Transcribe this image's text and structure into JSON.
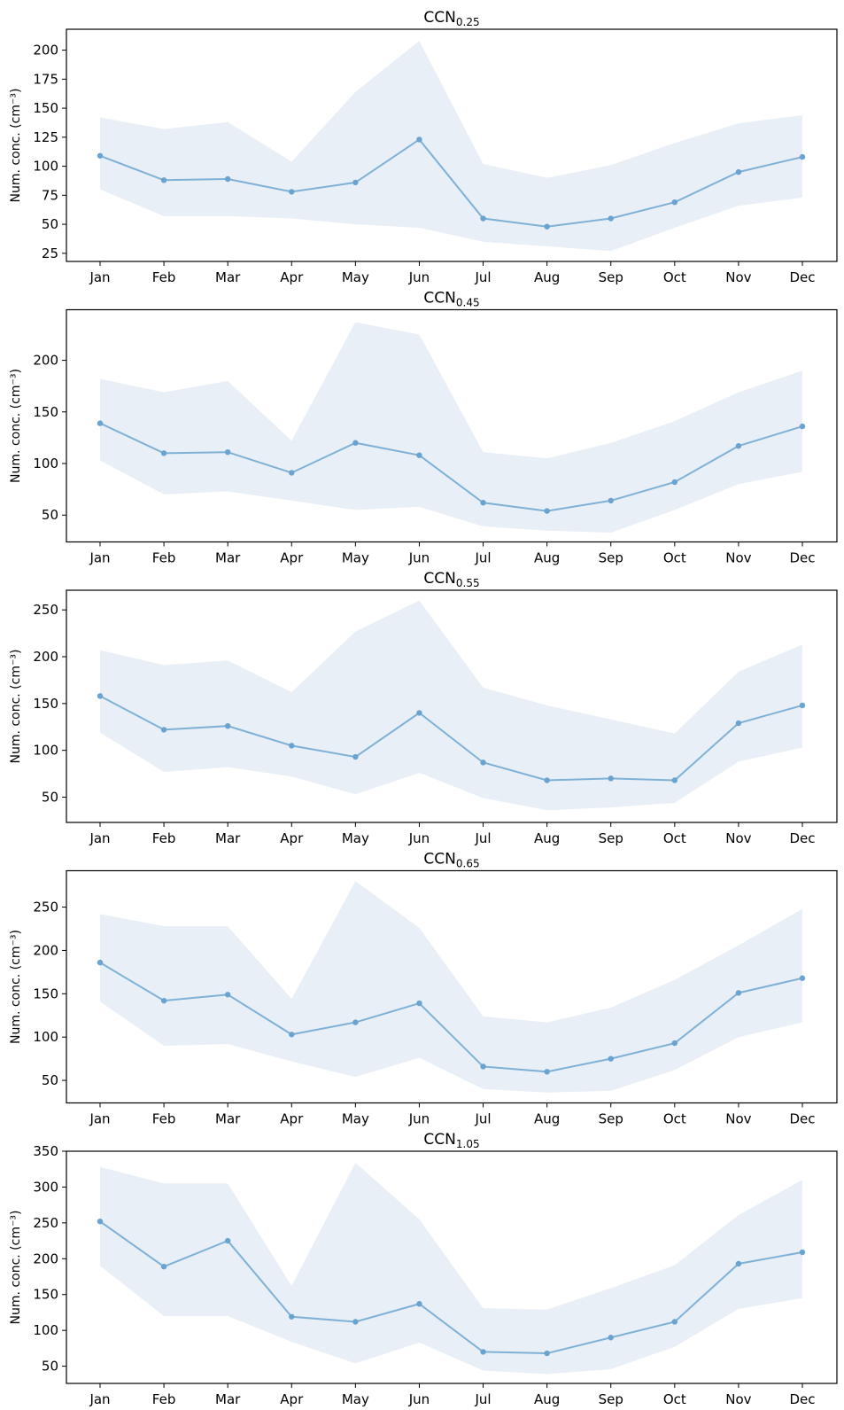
{
  "figure": {
    "colors": {
      "line": "#7fb1d6",
      "band": "#e8eff6",
      "marker": "#6aa3cf"
    }
  },
  "chart_data": [
    {
      "type": "area",
      "title_main": "CCN",
      "title_sub": "0.25",
      "ylabel": "Num. conc. (cm⁻³)",
      "categories": [
        "Jan",
        "Feb",
        "Mar",
        "Apr",
        "May",
        "Jun",
        "Jul",
        "Aug",
        "Sep",
        "Oct",
        "Nov",
        "Dec"
      ],
      "yticks": [
        25,
        50,
        75,
        100,
        125,
        150,
        175,
        200
      ],
      "ylim": [
        18,
        218
      ],
      "series": [
        {
          "role": "median",
          "values": [
            109,
            88,
            89,
            78,
            86,
            123,
            55,
            48,
            55,
            69,
            95,
            108
          ]
        },
        {
          "role": "lower",
          "values": [
            80,
            57,
            57,
            55,
            50,
            47,
            35,
            31,
            27,
            47,
            66,
            73
          ]
        },
        {
          "role": "upper",
          "values": [
            142,
            132,
            138,
            104,
            164,
            208,
            102,
            90,
            101,
            120,
            137,
            144
          ]
        }
      ]
    },
    {
      "type": "area",
      "title_main": "CCN",
      "title_sub": "0.45",
      "ylabel": "Num. conc. (cm⁻³)",
      "categories": [
        "Jan",
        "Feb",
        "Mar",
        "Apr",
        "May",
        "Jun",
        "Jul",
        "Aug",
        "Sep",
        "Oct",
        "Nov",
        "Dec"
      ],
      "yticks": [
        50,
        100,
        150,
        200
      ],
      "ylim": [
        24,
        249
      ],
      "series": [
        {
          "role": "median",
          "values": [
            139,
            110,
            111,
            91,
            120,
            108,
            62,
            54,
            64,
            82,
            117,
            136
          ]
        },
        {
          "role": "lower",
          "values": [
            103,
            70,
            73,
            64,
            55,
            58,
            39,
            35,
            33,
            55,
            80,
            92
          ]
        },
        {
          "role": "upper",
          "values": [
            182,
            169,
            180,
            122,
            237,
            225,
            111,
            105,
            120,
            141,
            169,
            190
          ]
        }
      ]
    },
    {
      "type": "area",
      "title_main": "CCN",
      "title_sub": "0.55",
      "ylabel": "Num. conc. (cm⁻³)",
      "categories": [
        "Jan",
        "Feb",
        "Mar",
        "Apr",
        "May",
        "Jun",
        "Jul",
        "Aug",
        "Sep",
        "Oct",
        "Nov",
        "Dec"
      ],
      "yticks": [
        50,
        100,
        150,
        200,
        250
      ],
      "ylim": [
        23,
        271
      ],
      "series": [
        {
          "role": "median",
          "values": [
            158,
            122,
            126,
            105,
            93,
            140,
            87,
            68,
            70,
            68,
            129,
            148
          ]
        },
        {
          "role": "lower",
          "values": [
            119,
            77,
            82,
            72,
            53,
            76,
            49,
            36,
            39,
            44,
            88,
            103
          ]
        },
        {
          "role": "upper",
          "values": [
            207,
            191,
            196,
            162,
            227,
            260,
            167,
            148,
            133,
            118,
            184,
            213
          ]
        }
      ]
    },
    {
      "type": "area",
      "title_main": "CCN",
      "title_sub": "0.65",
      "ylabel": "Num. conc. (cm⁻³)",
      "categories": [
        "Jan",
        "Feb",
        "Mar",
        "Apr",
        "May",
        "Jun",
        "Jul",
        "Aug",
        "Sep",
        "Oct",
        "Nov",
        "Dec"
      ],
      "yticks": [
        50,
        100,
        150,
        200,
        250
      ],
      "ylim": [
        24,
        292
      ],
      "series": [
        {
          "role": "median",
          "values": [
            186,
            142,
            149,
            103,
            117,
            139,
            66,
            60,
            75,
            93,
            151,
            168
          ]
        },
        {
          "role": "lower",
          "values": [
            141,
            90,
            92,
            72,
            54,
            76,
            40,
            36,
            38,
            62,
            100,
            117
          ]
        },
        {
          "role": "upper",
          "values": [
            242,
            228,
            228,
            144,
            280,
            226,
            124,
            117,
            134,
            166,
            206,
            248
          ]
        }
      ]
    },
    {
      "type": "area",
      "title_main": "CCN",
      "title_sub": "1.05",
      "ylabel": "Num. conc. (cm⁻³)",
      "categories": [
        "Jan",
        "Feb",
        "Mar",
        "Apr",
        "May",
        "Jun",
        "Jul",
        "Aug",
        "Sep",
        "Oct",
        "Nov",
        "Dec"
      ],
      "yticks": [
        50,
        100,
        150,
        200,
        250,
        300,
        350
      ],
      "ylim": [
        26,
        350
      ],
      "series": [
        {
          "role": "median",
          "values": [
            252,
            189,
            225,
            119,
            112,
            137,
            70,
            68,
            90,
            112,
            193,
            209
          ]
        },
        {
          "role": "lower",
          "values": [
            190,
            120,
            120,
            84,
            54,
            83,
            44,
            39,
            46,
            77,
            130,
            145
          ]
        },
        {
          "role": "upper",
          "values": [
            328,
            305,
            305,
            162,
            334,
            255,
            131,
            129,
            159,
            191,
            261,
            310
          ]
        }
      ]
    }
  ]
}
